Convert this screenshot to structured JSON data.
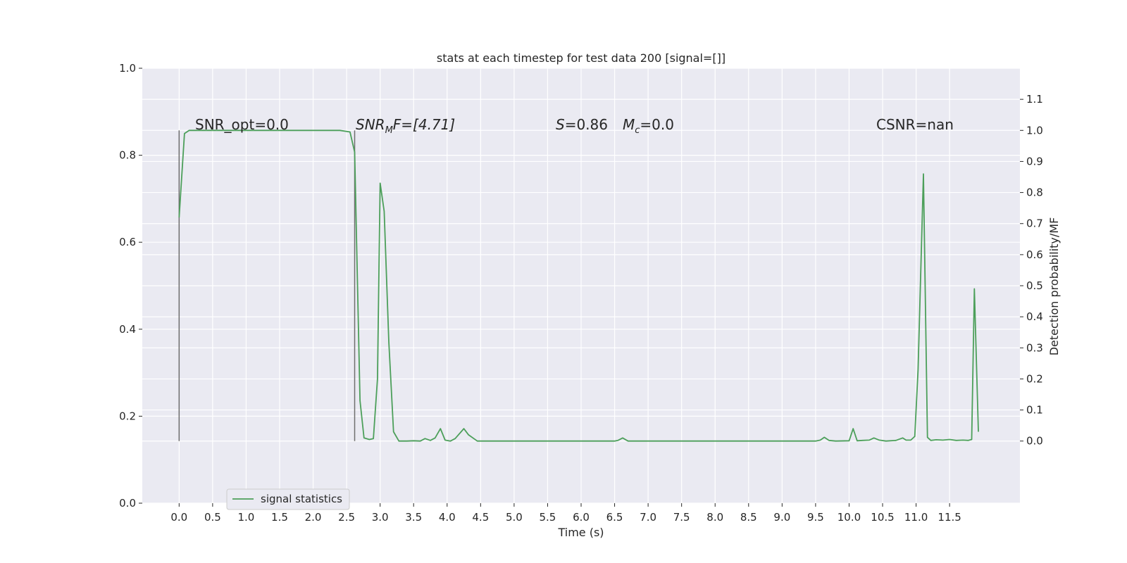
{
  "chart_data": {
    "type": "line",
    "title": "stats at each timestep for test data 200 [signal=[]]",
    "xlabel": "Time (s)",
    "ylabel_left": "",
    "ylabel_right": "Detection probability/MF",
    "xlim": [
      -0.55,
      12.55
    ],
    "ylim_left": [
      0.0,
      1.0
    ],
    "ylim_right": [
      -0.2,
      1.2
    ],
    "x_ticks": [
      "0.0",
      "0.5",
      "1.0",
      "1.5",
      "2.0",
      "2.5",
      "3.0",
      "3.5",
      "4.0",
      "4.5",
      "5.0",
      "5.5",
      "6.0",
      "6.5",
      "7.0",
      "7.5",
      "8.0",
      "8.5",
      "9.0",
      "9.5",
      "10.0",
      "10.5",
      "11.0",
      "11.5"
    ],
    "y_left_ticks": [
      "0.0",
      "0.2",
      "0.4",
      "0.6",
      "0.8",
      "1.0"
    ],
    "y_right_ticks": [
      "0.0",
      "0.1",
      "0.2",
      "0.3",
      "0.4",
      "0.5",
      "0.6",
      "0.7",
      "0.8",
      "0.9",
      "1.0",
      "1.1"
    ],
    "grid": true,
    "legend_position": "lower-left",
    "annotations": {
      "snr_opt": "SNR_opt=0.0",
      "snr_mf_main": "SNR",
      "snr_mf_sub": "M",
      "snr_mf_rest": "F=[4.71]",
      "s_label": "S",
      "s_value": "=0.86",
      "mc_label": "M",
      "mc_sub": "c",
      "mc_value": "=0.0",
      "csnr": "CSNR=nan"
    },
    "vertical_markers": [
      0.0,
      2.62
    ],
    "vertical_marker_range_right_axis": [
      0.0,
      1.0
    ],
    "series": [
      {
        "name": "signal statistics",
        "color": "#4c9f5a",
        "axis": "right",
        "points": [
          [
            0.0,
            0.72
          ],
          [
            0.08,
            0.99
          ],
          [
            0.15,
            1.0
          ],
          [
            0.3,
            1.0
          ],
          [
            0.5,
            1.0
          ],
          [
            0.75,
            1.0
          ],
          [
            1.0,
            1.0
          ],
          [
            1.25,
            1.0
          ],
          [
            1.5,
            1.0
          ],
          [
            1.75,
            1.0
          ],
          [
            2.0,
            1.0
          ],
          [
            2.25,
            1.0
          ],
          [
            2.4,
            1.0
          ],
          [
            2.55,
            0.995
          ],
          [
            2.62,
            0.93
          ],
          [
            2.7,
            0.13
          ],
          [
            2.76,
            0.01
          ],
          [
            2.84,
            0.005
          ],
          [
            2.9,
            0.008
          ],
          [
            2.96,
            0.2
          ],
          [
            3.0,
            0.83
          ],
          [
            3.06,
            0.74
          ],
          [
            3.13,
            0.32
          ],
          [
            3.2,
            0.03
          ],
          [
            3.28,
            0.0
          ],
          [
            3.4,
            0.0
          ],
          [
            3.5,
            0.001
          ],
          [
            3.6,
            0.0
          ],
          [
            3.67,
            0.008
          ],
          [
            3.75,
            0.002
          ],
          [
            3.82,
            0.01
          ],
          [
            3.9,
            0.04
          ],
          [
            3.97,
            0.003
          ],
          [
            4.05,
            0.0
          ],
          [
            4.12,
            0.008
          ],
          [
            4.25,
            0.04
          ],
          [
            4.32,
            0.02
          ],
          [
            4.45,
            0.0
          ],
          [
            4.6,
            0.0
          ],
          [
            5.0,
            0.0
          ],
          [
            5.5,
            0.0
          ],
          [
            6.0,
            0.0
          ],
          [
            6.5,
            0.0
          ],
          [
            6.55,
            0.002
          ],
          [
            6.62,
            0.01
          ],
          [
            6.7,
            0.0
          ],
          [
            7.0,
            0.0
          ],
          [
            7.5,
            0.0
          ],
          [
            8.0,
            0.0
          ],
          [
            8.5,
            0.0
          ],
          [
            9.0,
            0.0
          ],
          [
            9.5,
            0.0
          ],
          [
            9.57,
            0.003
          ],
          [
            9.63,
            0.012
          ],
          [
            9.7,
            0.002
          ],
          [
            9.8,
            0.0
          ],
          [
            10.0,
            0.001
          ],
          [
            10.06,
            0.04
          ],
          [
            10.12,
            0.001
          ],
          [
            10.2,
            0.002
          ],
          [
            10.3,
            0.003
          ],
          [
            10.37,
            0.01
          ],
          [
            10.45,
            0.003
          ],
          [
            10.55,
            0.0
          ],
          [
            10.7,
            0.002
          ],
          [
            10.8,
            0.01
          ],
          [
            10.85,
            0.003
          ],
          [
            10.92,
            0.003
          ],
          [
            10.98,
            0.015
          ],
          [
            11.03,
            0.23
          ],
          [
            11.11,
            0.86
          ],
          [
            11.17,
            0.012
          ],
          [
            11.22,
            0.002
          ],
          [
            11.3,
            0.004
          ],
          [
            11.4,
            0.003
          ],
          [
            11.5,
            0.005
          ],
          [
            11.6,
            0.002
          ],
          [
            11.7,
            0.003
          ],
          [
            11.78,
            0.002
          ],
          [
            11.83,
            0.005
          ],
          [
            11.87,
            0.49
          ],
          [
            11.93,
            0.03
          ]
        ]
      }
    ]
  },
  "legend": {
    "label": "signal statistics"
  }
}
